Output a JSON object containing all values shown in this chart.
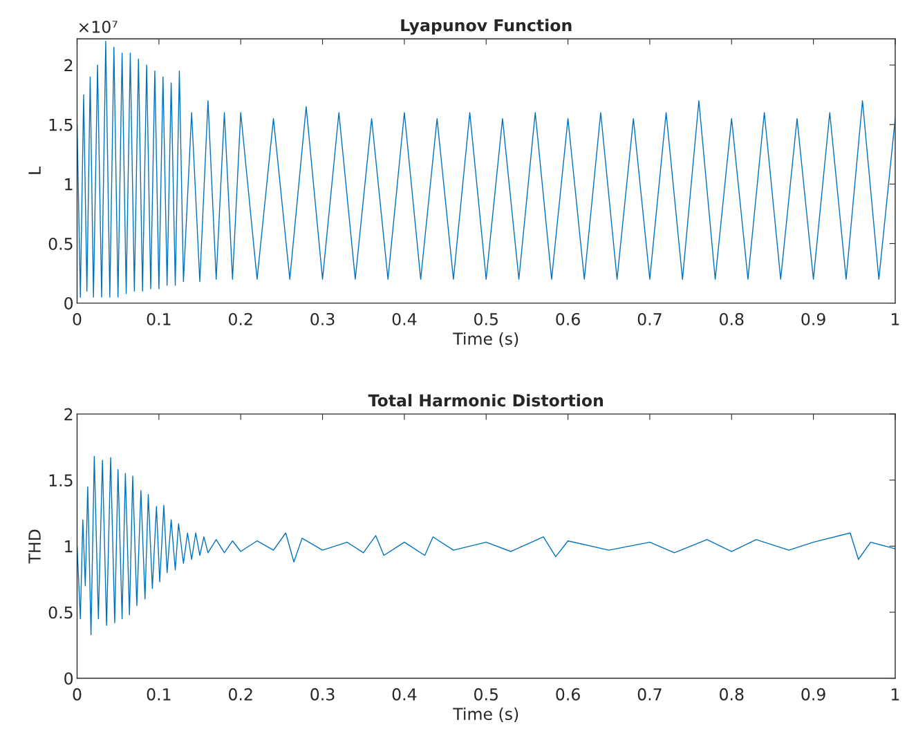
{
  "chart_data": [
    {
      "type": "line",
      "title": "Lyapunov Function",
      "xlabel": "Time (s)",
      "ylabel": "L",
      "annotations": [
        "×10⁷"
      ],
      "xlim": [
        0,
        1
      ],
      "ylim": [
        0,
        2.22
      ],
      "xticks": [
        0,
        0.1,
        0.2,
        0.3,
        0.4,
        0.5,
        0.6,
        0.7,
        0.8,
        0.9,
        1
      ],
      "yticks": [
        0,
        0.5,
        1,
        1.5,
        2
      ],
      "grid": false,
      "series": [
        {
          "color": "#0072bd",
          "x": [
            0,
            0.004,
            0.008,
            0.012,
            0.016,
            0.02,
            0.025,
            0.03,
            0.035,
            0.04,
            0.045,
            0.05,
            0.055,
            0.06,
            0.065,
            0.07,
            0.075,
            0.08,
            0.085,
            0.09,
            0.095,
            0.1,
            0.105,
            0.11,
            0.115,
            0.12,
            0.125,
            0.13,
            0.14,
            0.15,
            0.16,
            0.17,
            0.18,
            0.19,
            0.2,
            0.22,
            0.24,
            0.26,
            0.28,
            0.3,
            0.32,
            0.34,
            0.36,
            0.38,
            0.4,
            0.42,
            0.44,
            0.46,
            0.48,
            0.5,
            0.52,
            0.54,
            0.56,
            0.58,
            0.6,
            0.62,
            0.64,
            0.66,
            0.68,
            0.7,
            0.72,
            0.74,
            0.76,
            0.78,
            0.8,
            0.82,
            0.84,
            0.86,
            0.88,
            0.9,
            0.92,
            0.94,
            0.96,
            0.98,
            1.0
          ],
          "values": [
            1.5,
            0.05,
            1.75,
            0.1,
            1.9,
            0.05,
            2.0,
            0.05,
            2.2,
            0.05,
            2.15,
            0.05,
            2.1,
            0.08,
            2.1,
            0.1,
            2.05,
            0.1,
            2.0,
            0.12,
            1.95,
            0.12,
            1.9,
            0.15,
            1.85,
            0.15,
            1.95,
            0.18,
            1.6,
            0.18,
            1.7,
            0.2,
            1.6,
            0.2,
            1.6,
            0.2,
            1.55,
            0.2,
            1.65,
            0.2,
            1.6,
            0.2,
            1.55,
            0.2,
            1.6,
            0.2,
            1.55,
            0.2,
            1.6,
            0.2,
            1.55,
            0.2,
            1.6,
            0.2,
            1.55,
            0.2,
            1.6,
            0.2,
            1.55,
            0.2,
            1.6,
            0.2,
            1.7,
            0.2,
            1.55,
            0.2,
            1.6,
            0.2,
            1.55,
            0.2,
            1.6,
            0.2,
            1.7,
            0.2,
            1.55
          ]
        }
      ]
    },
    {
      "type": "line",
      "title": "Total Harmonic Distortion",
      "xlabel": "Time (s)",
      "ylabel": "THD",
      "xlim": [
        0,
        1
      ],
      "ylim": [
        0,
        2
      ],
      "xticks": [
        0,
        0.1,
        0.2,
        0.3,
        0.4,
        0.5,
        0.6,
        0.7,
        0.8,
        0.9,
        1
      ],
      "yticks": [
        0,
        0.5,
        1,
        1.5,
        2
      ],
      "grid": false,
      "series": [
        {
          "color": "#0072bd",
          "x": [
            0,
            0.004,
            0.007,
            0.01,
            0.013,
            0.017,
            0.021,
            0.026,
            0.031,
            0.036,
            0.041,
            0.046,
            0.05,
            0.055,
            0.059,
            0.064,
            0.068,
            0.073,
            0.078,
            0.083,
            0.087,
            0.092,
            0.097,
            0.101,
            0.106,
            0.11,
            0.115,
            0.12,
            0.124,
            0.13,
            0.135,
            0.14,
            0.145,
            0.15,
            0.155,
            0.16,
            0.17,
            0.18,
            0.19,
            0.2,
            0.22,
            0.24,
            0.255,
            0.265,
            0.275,
            0.3,
            0.33,
            0.35,
            0.365,
            0.375,
            0.4,
            0.425,
            0.435,
            0.46,
            0.5,
            0.53,
            0.57,
            0.585,
            0.6,
            0.65,
            0.7,
            0.73,
            0.77,
            0.8,
            0.83,
            0.87,
            0.9,
            0.945,
            0.955,
            0.97,
            1.0
          ],
          "values": [
            1.0,
            0.45,
            1.2,
            0.7,
            1.45,
            0.33,
            1.68,
            0.45,
            1.65,
            0.4,
            1.67,
            0.42,
            1.58,
            0.45,
            1.55,
            0.48,
            1.53,
            0.55,
            1.42,
            0.6,
            1.39,
            0.68,
            1.3,
            0.73,
            1.31,
            0.8,
            1.2,
            0.82,
            1.17,
            0.87,
            1.1,
            0.9,
            1.1,
            0.93,
            1.07,
            0.95,
            1.05,
            0.95,
            1.04,
            0.96,
            1.04,
            0.97,
            1.1,
            0.88,
            1.06,
            0.97,
            1.03,
            0.95,
            1.08,
            0.93,
            1.03,
            0.93,
            1.07,
            0.97,
            1.03,
            0.96,
            1.07,
            0.92,
            1.04,
            0.97,
            1.03,
            0.95,
            1.05,
            0.96,
            1.05,
            0.97,
            1.03,
            1.1,
            0.9,
            1.03,
            0.98
          ]
        }
      ]
    }
  ]
}
